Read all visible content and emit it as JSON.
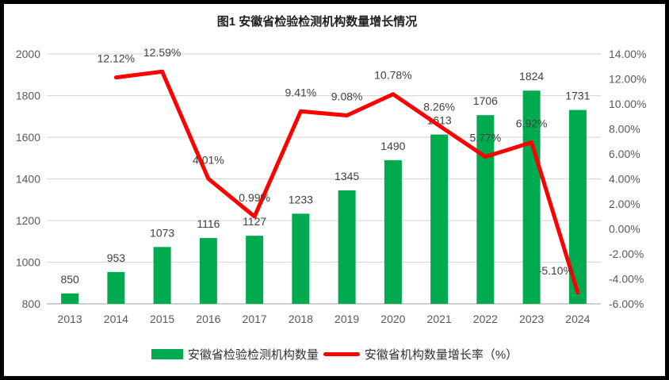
{
  "title": "图1 安徽省检验检测机构数量增长情况",
  "legend": [
    {
      "label": "安徽省检验检测机构数量",
      "swatch": "bar",
      "color": "#00AB50"
    },
    {
      "label": "安徽省机构数量增长率（%）",
      "swatch": "line",
      "color": "#FF0000"
    }
  ],
  "chart_data": {
    "type": "combo-bar-line",
    "title": "图1 安徽省检验检测机构数量增长情况",
    "categories": [
      "2013",
      "2014",
      "2015",
      "2016",
      "2017",
      "2018",
      "2019",
      "2020",
      "2021",
      "2022",
      "2023",
      "2024"
    ],
    "series": [
      {
        "name": "安徽省检验检测机构数量",
        "type": "bar",
        "axis": "y1",
        "color": "#00AB50",
        "values": [
          850,
          953,
          1073,
          1116,
          1127,
          1233,
          1345,
          1490,
          1613,
          1706,
          1824,
          1731
        ]
      },
      {
        "name": "安徽省机构数量增长率（%）",
        "type": "line",
        "axis": "y2",
        "color": "#FF0000",
        "values": [
          null,
          12.12,
          12.59,
          4.01,
          0.99,
          9.41,
          9.08,
          10.78,
          8.26,
          5.77,
          6.92,
          -5.1
        ],
        "label_format": "percent2"
      }
    ],
    "y1": {
      "min": 800,
      "max": 2000,
      "step": 200
    },
    "y2": {
      "min": -6,
      "max": 14,
      "step": 2,
      "format": "percent2"
    },
    "grid": "horizontal",
    "legend_position": "bottom",
    "data_labels": true,
    "colors": {
      "gridline": "#D9D9D9",
      "axis_line": "#BFBFBF",
      "tick_text": "#595959",
      "data_label": "#404040"
    },
    "line_label_offset_overrides": {
      "11": [
        -28,
        -23
      ]
    }
  }
}
